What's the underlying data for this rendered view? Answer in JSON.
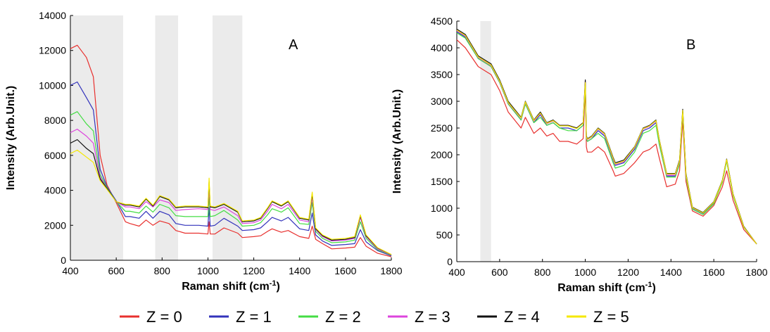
{
  "chart_data": [
    {
      "type": "line",
      "panel_label": "A",
      "xlabel": "Raman shift (cm",
      "xlabel_sup": "-1",
      "xlabel_tail": ")",
      "ylabel": "Intensity (Arb.Unit.)",
      "xlim": [
        400,
        1800
      ],
      "ylim": [
        0,
        14000
      ],
      "xticks": [
        "400",
        "600",
        "800",
        "1000",
        "1200",
        "1400",
        "1600",
        "1800"
      ],
      "yticks": [
        "0",
        "2000",
        "4000",
        "6000",
        "8000",
        "10000",
        "12000",
        "14000"
      ],
      "shaded_regions": [
        [
          400,
          630
        ],
        [
          770,
          870
        ],
        [
          1020,
          1150
        ]
      ],
      "grid": false,
      "key_points": [
        400,
        430,
        470,
        500,
        530,
        560,
        600,
        640,
        660,
        700,
        730,
        760,
        790,
        830,
        860,
        900,
        960,
        1000,
        1005,
        1010,
        1030,
        1070,
        1130,
        1150,
        1200,
        1230,
        1260,
        1280,
        1320,
        1350,
        1400,
        1440,
        1455,
        1470,
        1500,
        1540,
        1600,
        1640,
        1665,
        1690,
        1740,
        1800
      ],
      "series": [
        {
          "name": "Z = 0",
          "color": "#e8302e",
          "values": [
            12100,
            12300,
            11600,
            10500,
            6000,
            4300,
            3300,
            2200,
            2100,
            1950,
            2300,
            2000,
            2250,
            2100,
            1700,
            1550,
            1550,
            1500,
            2200,
            1500,
            1500,
            1850,
            1550,
            1300,
            1350,
            1400,
            1650,
            1800,
            1600,
            1700,
            1350,
            1250,
            1950,
            1200,
            950,
            650,
            700,
            750,
            1300,
            800,
            400,
            200
          ]
        },
        {
          "name": "Z = 1",
          "color": "#3333bb",
          "values": [
            10000,
            10200,
            9300,
            8600,
            5200,
            4200,
            3400,
            2500,
            2500,
            2400,
            2800,
            2400,
            2800,
            2600,
            2100,
            2000,
            2000,
            1950,
            3000,
            1950,
            2000,
            2400,
            1950,
            1700,
            1750,
            1850,
            2200,
            2450,
            2250,
            2450,
            1800,
            1700,
            2700,
            1450,
            1100,
            850,
            900,
            950,
            1750,
            1050,
            550,
            250
          ]
        },
        {
          "name": "Z = 2",
          "color": "#44dd44",
          "values": [
            8300,
            8500,
            7800,
            7400,
            4900,
            4150,
            3350,
            2800,
            2800,
            2700,
            3100,
            2750,
            3200,
            3000,
            2550,
            2500,
            2500,
            2500,
            3600,
            2500,
            2550,
            2850,
            2300,
            1950,
            2000,
            2150,
            2600,
            2950,
            2750,
            3000,
            2100,
            2050,
            3300,
            1650,
            1250,
            1000,
            1050,
            1150,
            2200,
            1250,
            600,
            280
          ]
        },
        {
          "name": "Z = 3",
          "color": "#dd44dd",
          "values": [
            7300,
            7500,
            7100,
            6700,
            4750,
            4100,
            3350,
            3050,
            3050,
            2950,
            3350,
            3050,
            3450,
            3300,
            2850,
            2900,
            2950,
            2900,
            4100,
            2900,
            2850,
            3050,
            2550,
            2100,
            2150,
            2300,
            2800,
            3200,
            2950,
            3200,
            2300,
            2200,
            3600,
            1750,
            1350,
            1100,
            1150,
            1250,
            2450,
            1350,
            650,
            300
          ]
        },
        {
          "name": "Z = 4",
          "color": "#111111",
          "values": [
            6700,
            6900,
            6400,
            6100,
            4650,
            4100,
            3350,
            3150,
            3150,
            3050,
            3500,
            3100,
            3650,
            3450,
            3000,
            3050,
            3050,
            3000,
            4500,
            3050,
            3000,
            3200,
            2750,
            2200,
            2250,
            2400,
            2950,
            3350,
            3100,
            3350,
            2400,
            2300,
            3800,
            1800,
            1400,
            1150,
            1200,
            1300,
            2550,
            1400,
            700,
            320
          ]
        },
        {
          "name": "Z = 5",
          "color": "#f5e800",
          "values": [
            6100,
            6300,
            5900,
            5600,
            4550,
            4050,
            3350,
            3200,
            3200,
            3100,
            3550,
            3150,
            3700,
            3500,
            3050,
            3100,
            3100,
            3050,
            4700,
            3100,
            3050,
            3250,
            2800,
            2250,
            2300,
            2450,
            3000,
            3400,
            3150,
            3400,
            2450,
            2350,
            3900,
            1850,
            1450,
            1200,
            1250,
            1350,
            2600,
            1450,
            720,
            330
          ]
        }
      ]
    },
    {
      "type": "line",
      "panel_label": "B",
      "xlabel": "Raman shift (cm",
      "xlabel_sup": "-1",
      "xlabel_tail": ")",
      "ylabel": "Intensity (Arb.Unit.)",
      "xlim": [
        400,
        1800
      ],
      "ylim": [
        0,
        4500
      ],
      "xticks": [
        "400",
        "600",
        "800",
        "1000",
        "1200",
        "1400",
        "1600",
        "1800"
      ],
      "yticks": [
        "0",
        "500",
        "1000",
        "1500",
        "2000",
        "2500",
        "3000",
        "3500",
        "4000",
        "4500"
      ],
      "shaded_regions": [
        [
          510,
          560
        ]
      ],
      "grid": false,
      "key_points": [
        400,
        440,
        500,
        540,
        560,
        600,
        640,
        660,
        700,
        720,
        760,
        790,
        820,
        850,
        880,
        920,
        960,
        990,
        1000,
        1005,
        1010,
        1030,
        1060,
        1090,
        1130,
        1140,
        1180,
        1230,
        1270,
        1300,
        1330,
        1345,
        1380,
        1420,
        1440,
        1455,
        1470,
        1500,
        1550,
        1600,
        1640,
        1660,
        1690,
        1740,
        1800
      ],
      "series": [
        {
          "name": "Z = 0",
          "color": "#e8302e",
          "values": [
            4150,
            4000,
            3650,
            3550,
            3500,
            3200,
            2800,
            2700,
            2500,
            2700,
            2400,
            2500,
            2350,
            2400,
            2250,
            2250,
            2200,
            2300,
            3250,
            2150,
            2050,
            2050,
            2150,
            2050,
            1700,
            1600,
            1650,
            1850,
            2050,
            2100,
            2200,
            1950,
            1400,
            1450,
            1700,
            2650,
            1500,
            950,
            850,
            1050,
            1400,
            1700,
            1150,
            600,
            330
          ]
        },
        {
          "name": "Z = 1",
          "color": "#3333bb",
          "values": [
            4300,
            4200,
            3800,
            3700,
            3650,
            3350,
            2950,
            2850,
            2650,
            2950,
            2600,
            2750,
            2550,
            2600,
            2500,
            2500,
            2450,
            2550,
            3350,
            2300,
            2250,
            2300,
            2450,
            2350,
            1900,
            1800,
            1850,
            2100,
            2450,
            2500,
            2600,
            2250,
            1600,
            1600,
            1850,
            2800,
            1600,
            1000,
            900,
            1100,
            1500,
            1900,
            1250,
            650,
            330
          ]
        },
        {
          "name": "Z = 2",
          "color": "#44dd44",
          "values": [
            4280,
            4180,
            3800,
            3700,
            3650,
            3350,
            2950,
            2850,
            2650,
            2950,
            2600,
            2700,
            2550,
            2600,
            2500,
            2450,
            2450,
            2550,
            3300,
            2300,
            2250,
            2300,
            2400,
            2300,
            1850,
            1750,
            1800,
            2050,
            2400,
            2450,
            2550,
            2200,
            1580,
            1580,
            1820,
            2780,
            1580,
            980,
            880,
            1080,
            1480,
            1880,
            1230,
            640,
            330
          ]
        },
        {
          "name": "Z = 3",
          "color": "#dd44dd",
          "values": [
            4320,
            4220,
            3820,
            3720,
            3670,
            3370,
            2970,
            2870,
            2680,
            2980,
            2630,
            2770,
            2580,
            2630,
            2550,
            2550,
            2500,
            2600,
            3380,
            2320,
            2280,
            2330,
            2480,
            2380,
            1920,
            1820,
            1870,
            2130,
            2480,
            2530,
            2630,
            2280,
            1620,
            1620,
            1870,
            2820,
            1620,
            1010,
            910,
            1110,
            1510,
            1910,
            1260,
            650,
            330
          ]
        },
        {
          "name": "Z = 4",
          "color": "#111111",
          "values": [
            4350,
            4250,
            3850,
            3750,
            3700,
            3400,
            3000,
            2900,
            2700,
            3000,
            2650,
            2800,
            2600,
            2650,
            2550,
            2550,
            2500,
            2600,
            3400,
            2350,
            2300,
            2350,
            2500,
            2400,
            1950,
            1850,
            1900,
            2150,
            2500,
            2550,
            2650,
            2300,
            1650,
            1650,
            1900,
            2850,
            1650,
            1020,
            920,
            1120,
            1520,
            1920,
            1270,
            660,
            330
          ]
        },
        {
          "name": "Z = 5",
          "color": "#f5e800",
          "values": [
            4330,
            4230,
            3830,
            3730,
            3680,
            3380,
            2980,
            2880,
            2690,
            2990,
            2640,
            2780,
            2590,
            2640,
            2540,
            2540,
            2490,
            2590,
            3350,
            2330,
            2290,
            2340,
            2490,
            2390,
            1930,
            1830,
            1880,
            2140,
            2490,
            2540,
            2640,
            2290,
            1640,
            1640,
            1880,
            2830,
            1630,
            1010,
            910,
            1110,
            1510,
            1910,
            1260,
            650,
            330
          ]
        }
      ]
    }
  ],
  "legend": [
    {
      "label": "Z = 0",
      "color": "#e8302e"
    },
    {
      "label": "Z = 1",
      "color": "#3333bb"
    },
    {
      "label": "Z = 2",
      "color": "#44dd44"
    },
    {
      "label": "Z = 3",
      "color": "#dd44dd"
    },
    {
      "label": "Z = 4",
      "color": "#111111"
    },
    {
      "label": "Z = 5",
      "color": "#f5e800"
    }
  ]
}
